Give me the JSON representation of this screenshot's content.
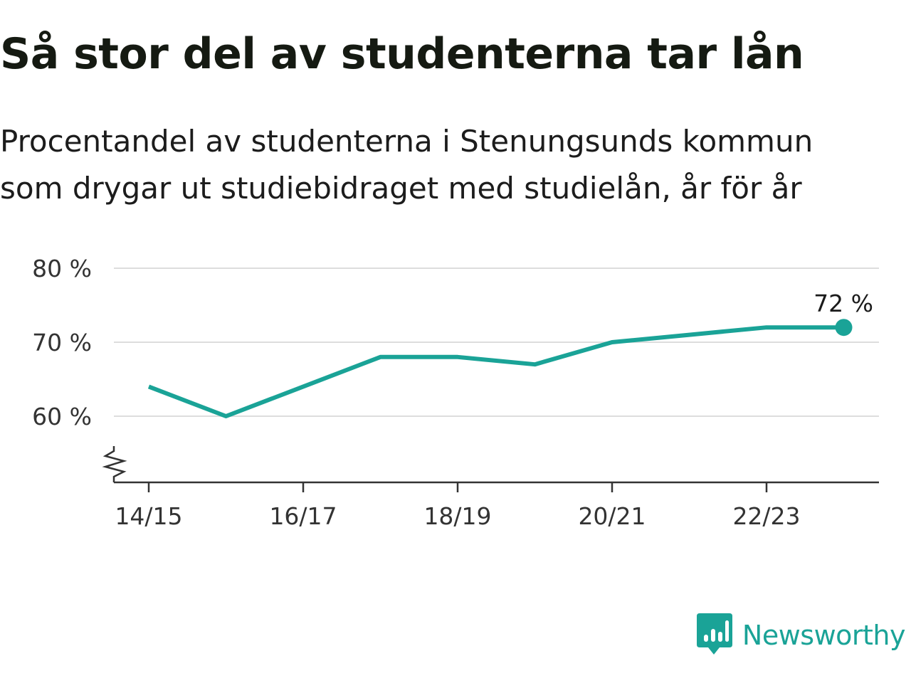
{
  "title": "Så stor del av studenterna tar lån",
  "subtitle_lines": [
    "Procentandel av studenterna i Stenungsunds kommun",
    "som drygar ut studiebidraget med studielån, år för år"
  ],
  "brand": {
    "name": "Newsworthy",
    "icon": "newsworthy-chart-logo-icon",
    "color": "#1aa397"
  },
  "colors": {
    "line": "#1aa397",
    "grid": "#dddddd",
    "axis": "#333333",
    "text": "#151a12"
  },
  "chart_data": {
    "type": "line",
    "x": [
      "14/15",
      "15/16",
      "16/17",
      "17/18",
      "18/19",
      "19/20",
      "20/21",
      "21/22",
      "22/23",
      "23/24"
    ],
    "series": [
      {
        "values": [
          64,
          60,
          64,
          68,
          68,
          67,
          70,
          71,
          72,
          72
        ]
      }
    ],
    "x_tick_labels": [
      "14/15",
      "16/17",
      "18/19",
      "20/21",
      "22/23"
    ],
    "y_ticks": [
      60,
      70,
      80
    ],
    "y_tick_labels": [
      "60 %",
      "70 %",
      "80 %"
    ],
    "ylim": [
      51,
      80
    ],
    "y_axis_break": true,
    "grid": true,
    "end_label": "72 %"
  }
}
